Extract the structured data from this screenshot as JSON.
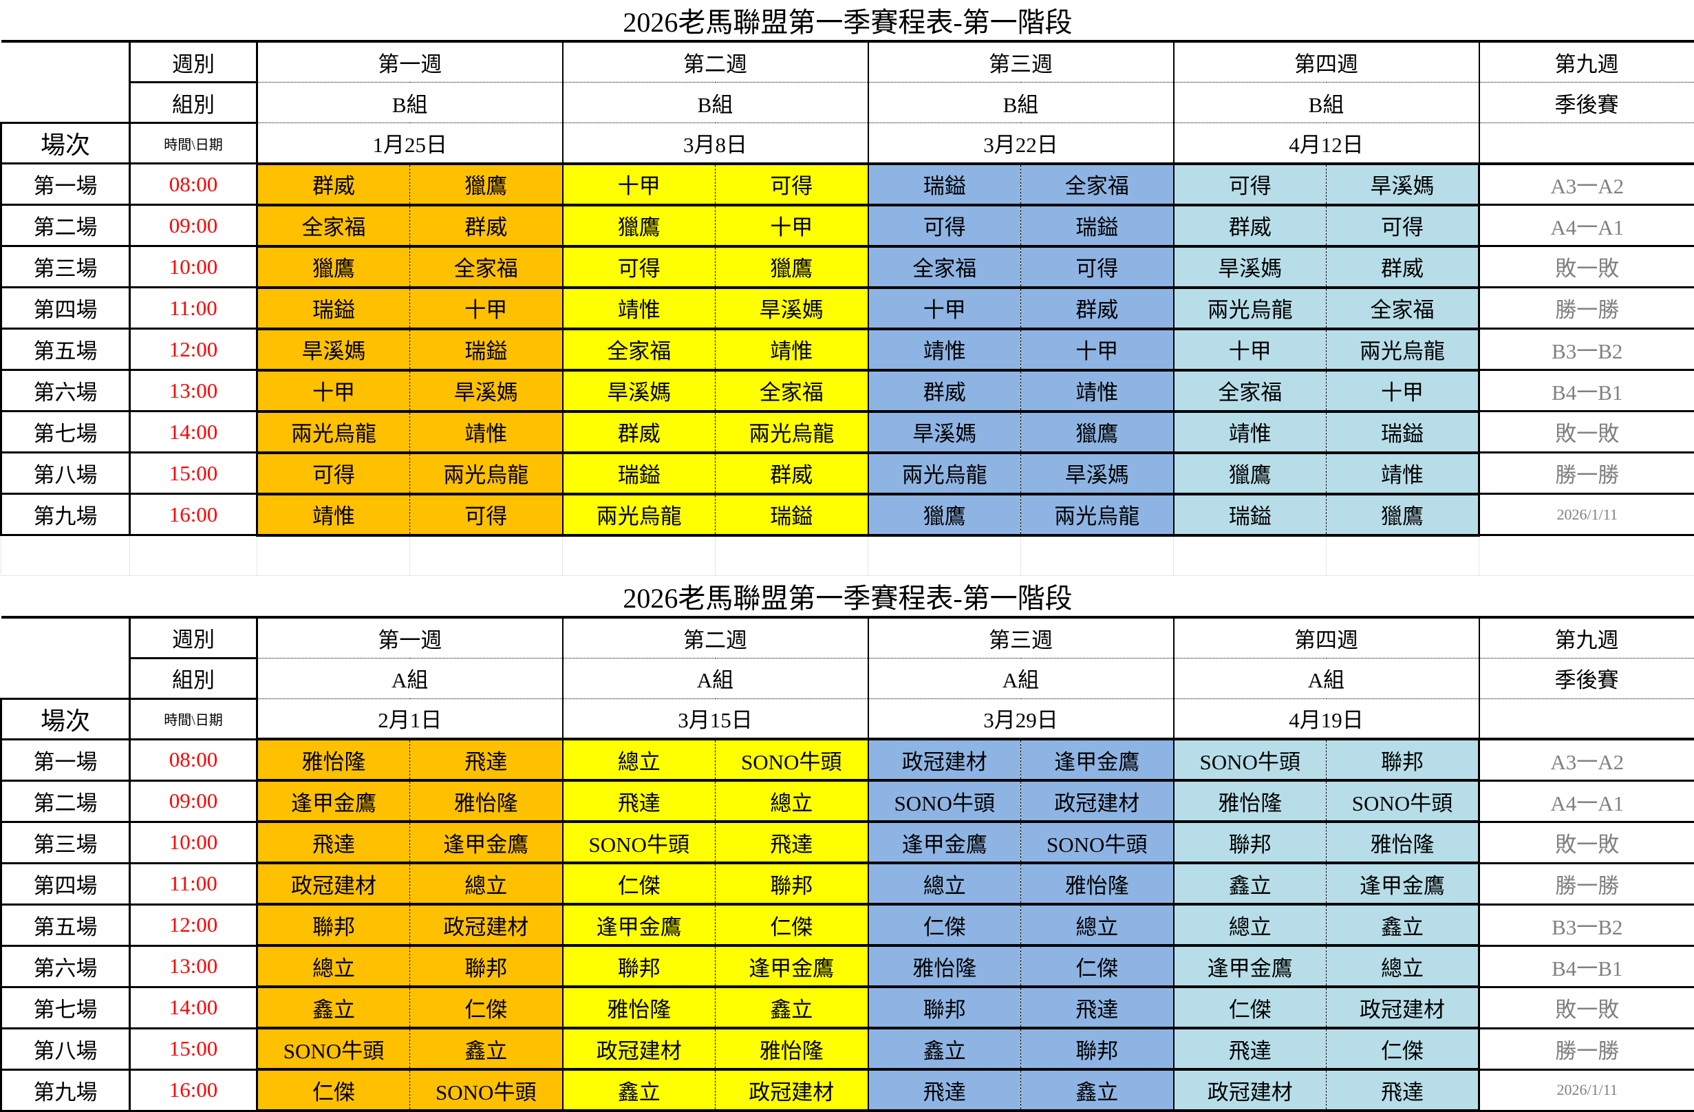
{
  "colors": {
    "week1": "#FFC000",
    "week2": "#FFFF00",
    "week3": "#8EB4E3",
    "week4": "#B7DEE8",
    "time": "#FF0000",
    "playoff_text": "#808080"
  },
  "labels": {
    "week": "週別",
    "group": "組別",
    "match": "場次",
    "time_date": "時間\\日期"
  },
  "match_labels": [
    "第一場",
    "第二場",
    "第三場",
    "第四場",
    "第五場",
    "第六場",
    "第七場",
    "第八場",
    "第九場"
  ],
  "times": [
    "08:00",
    "09:00",
    "10:00",
    "11:00",
    "12:00",
    "13:00",
    "14:00",
    "15:00",
    "16:00"
  ],
  "tables": [
    {
      "title": "2026老馬聯盟第一季賽程表-第一階段",
      "weeks": [
        "第一週",
        "第二週",
        "第三週",
        "第四週",
        "第九週"
      ],
      "groups": [
        "B組",
        "B組",
        "B組",
        "B組",
        "季後賽"
      ],
      "dates": [
        "1月25日",
        "3月8日",
        "3月22日",
        "4月12日",
        ""
      ],
      "games": [
        [
          [
            "群威",
            "獵鷹"
          ],
          [
            "全家福",
            "群威"
          ],
          [
            "獵鷹",
            "全家福"
          ],
          [
            "瑞鎰",
            "十甲"
          ],
          [
            "旱溪媽",
            "瑞鎰"
          ],
          [
            "十甲",
            "旱溪媽"
          ],
          [
            "兩光烏龍",
            "靖惟"
          ],
          [
            "可得",
            "兩光烏龍"
          ],
          [
            "靖惟",
            "可得"
          ]
        ],
        [
          [
            "十甲",
            "可得"
          ],
          [
            "獵鷹",
            "十甲"
          ],
          [
            "可得",
            "獵鷹"
          ],
          [
            "靖惟",
            "旱溪媽"
          ],
          [
            "全家福",
            "靖惟"
          ],
          [
            "旱溪媽",
            "全家福"
          ],
          [
            "群威",
            "兩光烏龍"
          ],
          [
            "瑞鎰",
            "群威"
          ],
          [
            "兩光烏龍",
            "瑞鎰"
          ]
        ],
        [
          [
            "瑞鎰",
            "全家福"
          ],
          [
            "可得",
            "瑞鎰"
          ],
          [
            "全家福",
            "可得"
          ],
          [
            "十甲",
            "群威"
          ],
          [
            "靖惟",
            "十甲"
          ],
          [
            "群威",
            "靖惟"
          ],
          [
            "旱溪媽",
            "獵鷹"
          ],
          [
            "兩光烏龍",
            "旱溪媽"
          ],
          [
            "獵鷹",
            "兩光烏龍"
          ]
        ],
        [
          [
            "可得",
            "旱溪媽"
          ],
          [
            "群威",
            "可得"
          ],
          [
            "旱溪媽",
            "群威"
          ],
          [
            "兩光烏龍",
            "全家福"
          ],
          [
            "十甲",
            "兩光烏龍"
          ],
          [
            "全家福",
            "十甲"
          ],
          [
            "靖惟",
            "瑞鎰"
          ],
          [
            "獵鷹",
            "靖惟"
          ],
          [
            "瑞鎰",
            "獵鷹"
          ]
        ]
      ],
      "playoffs": [
        "A3一A2",
        "A4一A1",
        "敗一敗",
        "勝一勝",
        "B3一B2",
        "B4一B1",
        "敗一敗",
        "勝一勝",
        "2026/1/11"
      ]
    },
    {
      "title": "2026老馬聯盟第一季賽程表-第一階段",
      "weeks": [
        "第一週",
        "第二週",
        "第三週",
        "第四週",
        "第九週"
      ],
      "groups": [
        "A組",
        "A組",
        "A組",
        "A組",
        "季後賽"
      ],
      "dates": [
        "2月1日",
        "3月15日",
        "3月29日",
        "4月19日",
        ""
      ],
      "games": [
        [
          [
            "雅怡隆",
            "飛達"
          ],
          [
            "逢甲金鷹",
            "雅怡隆"
          ],
          [
            "飛達",
            "逢甲金鷹"
          ],
          [
            "政冠建材",
            "總立"
          ],
          [
            "聯邦",
            "政冠建材"
          ],
          [
            "總立",
            "聯邦"
          ],
          [
            "鑫立",
            "仁傑"
          ],
          [
            "SONO牛頭",
            "鑫立"
          ],
          [
            "仁傑",
            "SONO牛頭"
          ]
        ],
        [
          [
            "總立",
            "SONO牛頭"
          ],
          [
            "飛達",
            "總立"
          ],
          [
            "SONO牛頭",
            "飛達"
          ],
          [
            "仁傑",
            "聯邦"
          ],
          [
            "逢甲金鷹",
            "仁傑"
          ],
          [
            "聯邦",
            "逢甲金鷹"
          ],
          [
            "雅怡隆",
            "鑫立"
          ],
          [
            "政冠建材",
            "雅怡隆"
          ],
          [
            "鑫立",
            "政冠建材"
          ]
        ],
        [
          [
            "政冠建材",
            "逢甲金鷹"
          ],
          [
            "SONO牛頭",
            "政冠建材"
          ],
          [
            "逢甲金鷹",
            "SONO牛頭"
          ],
          [
            "總立",
            "雅怡隆"
          ],
          [
            "仁傑",
            "總立"
          ],
          [
            "雅怡隆",
            "仁傑"
          ],
          [
            "聯邦",
            "飛達"
          ],
          [
            "鑫立",
            "聯邦"
          ],
          [
            "飛達",
            "鑫立"
          ]
        ],
        [
          [
            "SONO牛頭",
            "聯邦"
          ],
          [
            "雅怡隆",
            "SONO牛頭"
          ],
          [
            "聯邦",
            "雅怡隆"
          ],
          [
            "鑫立",
            "逢甲金鷹"
          ],
          [
            "總立",
            "鑫立"
          ],
          [
            "逢甲金鷹",
            "總立"
          ],
          [
            "仁傑",
            "政冠建材"
          ],
          [
            "飛達",
            "仁傑"
          ],
          [
            "政冠建材",
            "飛達"
          ]
        ]
      ],
      "playoffs": [
        "A3一A2",
        "A4一A1",
        "敗一敗",
        "勝一勝",
        "B3一B2",
        "B4一B1",
        "敗一敗",
        "勝一勝",
        "2026/1/11"
      ]
    }
  ]
}
